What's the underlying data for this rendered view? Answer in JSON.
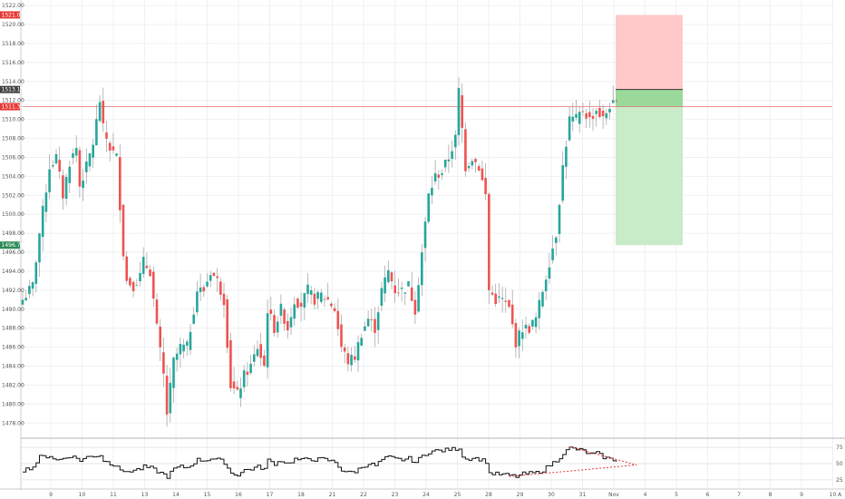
{
  "chart_data": {
    "type": "candlestick",
    "y_ticks": [
      "1478.00",
      "1480.00",
      "1482.00",
      "1484.00",
      "1486.00",
      "1488.00",
      "1490.00",
      "1492.00",
      "1494.00",
      "1496.00",
      "1498.00",
      "1500.00",
      "1502.00",
      "1504.00",
      "1506.00",
      "1508.00",
      "1510.00",
      "1512.00",
      "1514.00",
      "1516.00",
      "1518.00",
      "1520.00",
      "1522.00"
    ],
    "ylim": [
      1476.5,
      1522.2
    ],
    "x_ticks": [
      "9",
      "10",
      "11",
      "13",
      "14",
      "15",
      "16",
      "17",
      "18",
      "21",
      "22",
      "23",
      "24",
      "25",
      "28",
      "29",
      "30",
      "31",
      "Nov",
      "4",
      "5",
      "6",
      "7",
      "8",
      "9",
      "10",
      "A"
    ],
    "colors": {
      "up": "#26a69a",
      "down": "#ef5350",
      "wick": "#9e9e9e",
      "stop_zone": "#ffc9c9",
      "target_zone": "#c8ebc8",
      "entry_zone": "#9bd99b"
    },
    "price_badges": [
      {
        "label": "1521.01",
        "value": 1521.01,
        "color": "#e53935"
      },
      {
        "label": "1513.15",
        "value": 1513.15,
        "color": "#424242"
      },
      {
        "label": "1511.34",
        "value": 1511.34,
        "color": "#e53935"
      },
      {
        "label": "1496.75",
        "value": 1496.75,
        "color": "#2e8b57"
      }
    ],
    "position": {
      "stop": 1521.01,
      "entry": 1513.15,
      "target": 1496.75,
      "current": 1511.34,
      "direction": "short"
    },
    "close_path": [
      [
        0,
        1491
      ],
      [
        3,
        1492.5
      ],
      [
        5,
        1498
      ],
      [
        8,
        1505
      ],
      [
        10,
        1506
      ],
      [
        12,
        1502
      ],
      [
        14,
        1505.5
      ],
      [
        16,
        1507
      ],
      [
        17,
        1503
      ],
      [
        19,
        1505
      ],
      [
        21,
        1507.5
      ],
      [
        23,
        1512
      ],
      [
        24,
        1509
      ],
      [
        26,
        1507
      ],
      [
        28,
        1506
      ],
      [
        30,
        1496
      ],
      [
        31,
        1493
      ],
      [
        33,
        1492.5
      ],
      [
        35,
        1493.5
      ],
      [
        36,
        1495
      ],
      [
        38,
        1494
      ],
      [
        40,
        1488
      ],
      [
        42,
        1483
      ],
      [
        43,
        1479
      ],
      [
        45,
        1484.5
      ],
      [
        47,
        1486
      ],
      [
        49,
        1486
      ],
      [
        51,
        1490
      ],
      [
        52,
        1492
      ],
      [
        54,
        1492
      ],
      [
        56,
        1494
      ],
      [
        58,
        1493
      ],
      [
        60,
        1491
      ],
      [
        62,
        1482
      ],
      [
        64,
        1481
      ],
      [
        66,
        1483
      ],
      [
        68,
        1484
      ],
      [
        70,
        1486
      ],
      [
        72,
        1484
      ],
      [
        73,
        1490
      ],
      [
        75,
        1488
      ],
      [
        77,
        1490
      ],
      [
        79,
        1488
      ],
      [
        81,
        1491
      ],
      [
        83,
        1490.5
      ],
      [
        85,
        1492
      ],
      [
        87,
        1491
      ],
      [
        89,
        1491.5
      ],
      [
        91,
        1491
      ],
      [
        93,
        1490
      ],
      [
        95,
        1486
      ],
      [
        97,
        1484.5
      ],
      [
        99,
        1485
      ],
      [
        101,
        1487.5
      ],
      [
        103,
        1489
      ],
      [
        105,
        1488
      ],
      [
        107,
        1492
      ],
      [
        109,
        1494
      ],
      [
        111,
        1492
      ],
      [
        113,
        1492
      ],
      [
        115,
        1492.5
      ],
      [
        117,
        1490
      ],
      [
        119,
        1496
      ],
      [
        121,
        1502
      ],
      [
        123,
        1504
      ],
      [
        125,
        1504.5
      ],
      [
        127,
        1506
      ],
      [
        129,
        1508
      ],
      [
        130,
        1513
      ],
      [
        131,
        1509
      ],
      [
        132,
        1505
      ],
      [
        134,
        1506
      ],
      [
        136,
        1505
      ],
      [
        138,
        1502
      ],
      [
        139,
        1492
      ],
      [
        141,
        1491
      ],
      [
        143,
        1491
      ],
      [
        145,
        1490
      ],
      [
        147,
        1486.5
      ],
      [
        149,
        1488
      ],
      [
        151,
        1488
      ],
      [
        153,
        1489
      ],
      [
        155,
        1492
      ],
      [
        157,
        1495
      ],
      [
        159,
        1498
      ],
      [
        161,
        1505
      ],
      [
        163,
        1510
      ],
      [
        165,
        1510
      ],
      [
        167,
        1511
      ],
      [
        169,
        1510
      ],
      [
        171,
        1511
      ],
      [
        173,
        1510
      ],
      [
        175,
        1511.5
      ],
      [
        177,
        1511.5
      ]
    ],
    "num_bars": 178,
    "oscillator": {
      "y_ticks": [
        "25",
        "50",
        "75"
      ],
      "ylim": [
        15,
        85
      ],
      "path": [
        [
          0,
          40
        ],
        [
          3,
          45
        ],
        [
          5,
          60
        ],
        [
          8,
          62
        ],
        [
          10,
          55
        ],
        [
          12,
          58
        ],
        [
          14,
          62
        ],
        [
          16,
          58
        ],
        [
          17,
          55
        ],
        [
          19,
          60
        ],
        [
          21,
          62
        ],
        [
          23,
          63
        ],
        [
          24,
          55
        ],
        [
          26,
          50
        ],
        [
          28,
          48
        ],
        [
          30,
          35
        ],
        [
          31,
          38
        ],
        [
          33,
          40
        ],
        [
          35,
          42
        ],
        [
          36,
          45
        ],
        [
          38,
          43
        ],
        [
          40,
          38
        ],
        [
          42,
          33
        ],
        [
          43,
          30
        ],
        [
          45,
          42
        ],
        [
          47,
          45
        ],
        [
          49,
          44
        ],
        [
          51,
          52
        ],
        [
          52,
          56
        ],
        [
          54,
          55
        ],
        [
          56,
          58
        ],
        [
          58,
          56
        ],
        [
          60,
          52
        ],
        [
          62,
          35
        ],
        [
          64,
          33
        ],
        [
          66,
          40
        ],
        [
          68,
          42
        ],
        [
          70,
          45
        ],
        [
          72,
          42
        ],
        [
          73,
          55
        ],
        [
          75,
          50
        ],
        [
          77,
          55
        ],
        [
          79,
          50
        ],
        [
          81,
          57
        ],
        [
          83,
          55
        ],
        [
          85,
          58
        ],
        [
          87,
          56
        ],
        [
          89,
          57
        ],
        [
          91,
          55
        ],
        [
          93,
          52
        ],
        [
          95,
          40
        ],
        [
          97,
          36
        ],
        [
          99,
          38
        ],
        [
          101,
          45
        ],
        [
          103,
          50
        ],
        [
          105,
          47
        ],
        [
          107,
          56
        ],
        [
          109,
          60
        ],
        [
          111,
          57
        ],
        [
          113,
          56
        ],
        [
          115,
          58
        ],
        [
          117,
          52
        ],
        [
          119,
          62
        ],
        [
          121,
          68
        ],
        [
          123,
          70
        ],
        [
          125,
          70
        ],
        [
          127,
          72
        ],
        [
          129,
          73
        ],
        [
          130,
          74
        ],
        [
          131,
          62
        ],
        [
          132,
          57
        ],
        [
          134,
          59
        ],
        [
          136,
          57
        ],
        [
          138,
          53
        ],
        [
          139,
          35
        ],
        [
          141,
          34
        ],
        [
          143,
          33
        ],
        [
          145,
          32
        ],
        [
          147,
          30
        ],
        [
          149,
          34
        ],
        [
          151,
          35
        ],
        [
          153,
          36
        ],
        [
          155,
          40
        ],
        [
          157,
          48
        ],
        [
          159,
          55
        ],
        [
          161,
          66
        ],
        [
          163,
          74
        ],
        [
          165,
          72
        ],
        [
          167,
          70
        ],
        [
          169,
          64
        ],
        [
          171,
          66
        ],
        [
          173,
          60
        ],
        [
          175,
          57
        ],
        [
          177,
          55
        ]
      ],
      "trend_upper": [
        [
          163,
          76
        ],
        [
          183,
          48
        ]
      ],
      "trend_lower": [
        [
          145,
          30
        ],
        [
          183,
          48
        ]
      ]
    }
  }
}
